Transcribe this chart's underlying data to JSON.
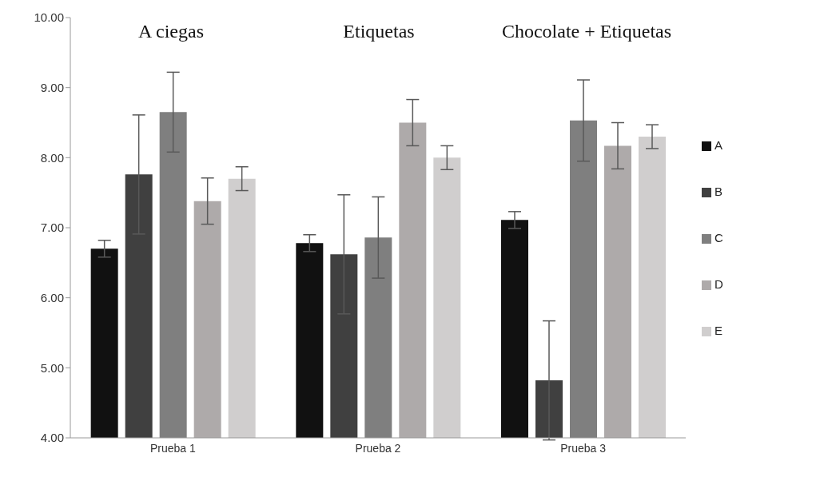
{
  "chart_data": {
    "type": "bar",
    "categories": [
      "Prueba 1",
      "Prueba 2",
      "Prueba 3"
    ],
    "series": [
      {
        "name": "A",
        "color": "#111111",
        "values": [
          6.7,
          6.78,
          7.11
        ],
        "errors": [
          0.12,
          0.12,
          0.12
        ]
      },
      {
        "name": "B",
        "color": "#404040",
        "values": [
          7.76,
          6.62,
          4.82
        ],
        "errors": [
          0.85,
          0.85,
          0.85
        ]
      },
      {
        "name": "C",
        "color": "#7f7f7f",
        "values": [
          8.65,
          6.86,
          8.53
        ],
        "errors": [
          0.57,
          0.58,
          0.58
        ]
      },
      {
        "name": "D",
        "color": "#aeaaaa",
        "values": [
          7.38,
          8.5,
          8.17
        ],
        "errors": [
          0.33,
          0.33,
          0.33
        ]
      },
      {
        "name": "E",
        "color": "#d0cece",
        "values": [
          7.7,
          8.0,
          8.3
        ],
        "errors": [
          0.17,
          0.17,
          0.17
        ]
      }
    ],
    "ylim": [
      4,
      10
    ],
    "yticks": [
      {
        "value": 4,
        "label": "4.00"
      },
      {
        "value": 5,
        "label": "5.00"
      },
      {
        "value": 6,
        "label": "6.00"
      },
      {
        "value": 7,
        "label": "7.00"
      },
      {
        "value": 8,
        "label": "8.00"
      },
      {
        "value": 9,
        "label": "9.00"
      },
      {
        "value": 10,
        "label": "10.00"
      }
    ],
    "annotations": [
      "A ciegas",
      "Etiquetas",
      "Chocolate + Etiquetas"
    ],
    "legend": "right",
    "grid": false
  }
}
